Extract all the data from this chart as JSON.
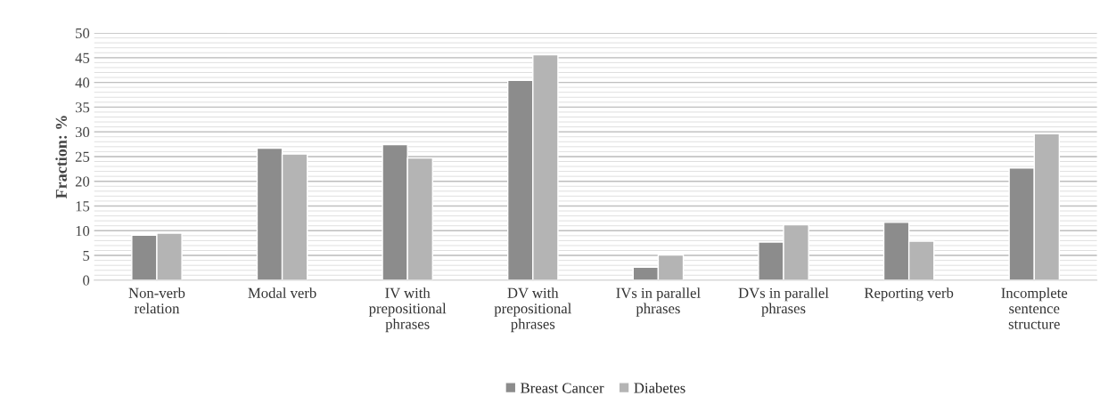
{
  "chart_data": {
    "type": "bar",
    "ylabel": "Fraction: %",
    "categories": [
      "Non-verb\nrelation",
      "Modal verb",
      "IV with\nprepositional\nphrases",
      "DV with\nprepositional\nphrases",
      "IVs in parallel\nphrases",
      "DVs in parallel\nphrases",
      "Reporting verb",
      "Incomplete\nsentence\nstructure"
    ],
    "series": [
      {
        "name": "Breast Cancer",
        "color": "#8c8c8c",
        "values": [
          9.1,
          26.7,
          27.4,
          40.4,
          2.6,
          7.7,
          11.7,
          22.7
        ]
      },
      {
        "name": "Diabetes",
        "color": "#b4b4b4",
        "values": [
          9.5,
          25.5,
          24.7,
          45.6,
          5.1,
          11.2,
          7.9,
          29.6
        ]
      }
    ],
    "ylim": [
      0,
      50
    ],
    "yticks": [
      0,
      5,
      10,
      15,
      20,
      25,
      30,
      35,
      40,
      45,
      50
    ],
    "grid": "y",
    "legend": "bottom"
  }
}
